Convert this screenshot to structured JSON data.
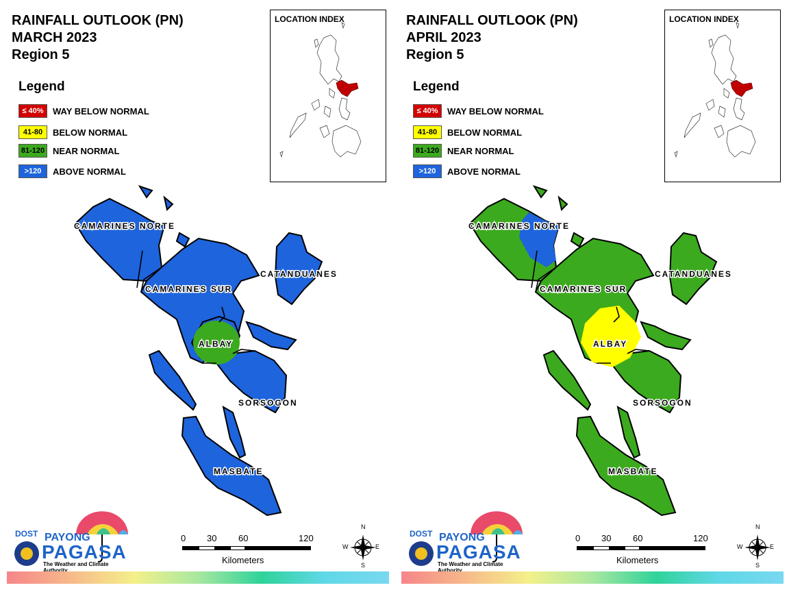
{
  "legend": {
    "title": "Legend",
    "items": [
      {
        "range": "≤ 40%",
        "label": "WAY BELOW NORMAL",
        "color": "#d40000",
        "text_color": "#ffffff"
      },
      {
        "range": "41-80",
        "label": "BELOW NORMAL",
        "color": "#ffff00",
        "text_color": "#000000"
      },
      {
        "range": "81-120",
        "label": "NEAR NORMAL",
        "color": "#3caa1e",
        "text_color": "#000000"
      },
      {
        "range": ">120",
        "label": "ABOVE NORMAL",
        "color": "#1e64dc",
        "text_color": "#ffffff"
      }
    ]
  },
  "location_index_label": "LOCATION INDEX",
  "province_labels": [
    "CAMARINES NORTE",
    "CAMARINES SUR",
    "CATANDUANES",
    "ALBAY",
    "SORSOGON",
    "MASBATE"
  ],
  "scale": {
    "ticks": [
      "0",
      "30",
      "60",
      "120"
    ],
    "caption": "Kilometers"
  },
  "compass": {
    "n": "N",
    "s": "S",
    "e": "E",
    "w": "W"
  },
  "logo": {
    "dost": "DOST",
    "payong": "PAYONG",
    "pagasa": "PAGASA",
    "tagline": "The Weather and Climate Authority"
  },
  "highlight_color": "#c00000",
  "panels": [
    {
      "title_line1": "RAINFALL OUTLOOK (PN)",
      "title_line2": "MARCH 2023",
      "title_line3": "Region 5",
      "provinces": {
        "CAMARINES NORTE": "ABOVE NORMAL",
        "CAMARINES SUR": "ABOVE NORMAL",
        "CATANDUANES": "ABOVE NORMAL",
        "ALBAY": "NEAR NORMAL (central) / ABOVE NORMAL",
        "SORSOGON": "ABOVE NORMAL",
        "MASBATE": "ABOVE NORMAL"
      }
    },
    {
      "title_line1": "RAINFALL OUTLOOK (PN)",
      "title_line2": "APRIL 2023",
      "title_line3": "Region 5",
      "provinces": {
        "CAMARINES NORTE": "NEAR NORMAL / ABOVE NORMAL (east)",
        "CAMARINES SUR": "NEAR NORMAL",
        "CATANDUANES": "NEAR NORMAL",
        "ALBAY": "BELOW NORMAL",
        "SORSOGON": "NEAR NORMAL",
        "MASBATE": "NEAR NORMAL"
      }
    }
  ]
}
